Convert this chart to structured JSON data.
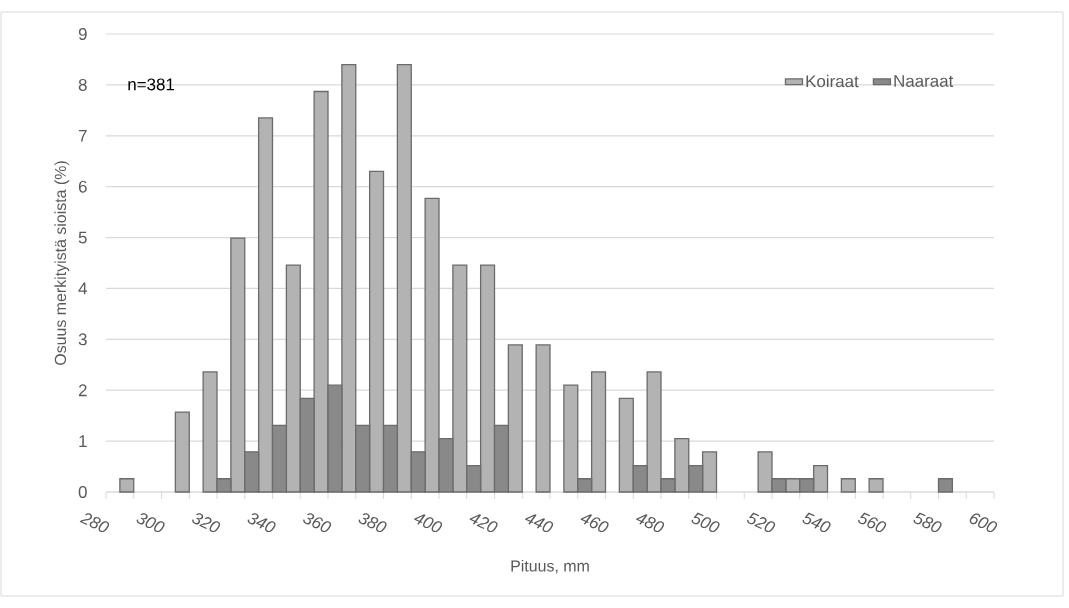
{
  "chart_data": {
    "type": "bar",
    "xlabel": "Pituus, mm",
    "ylabel": "Osuus merkityistä sioista (%)",
    "annotations": [
      "n=381"
    ],
    "x": [
      290,
      300,
      310,
      320,
      330,
      340,
      350,
      360,
      370,
      380,
      390,
      400,
      410,
      420,
      430,
      440,
      450,
      460,
      470,
      480,
      490,
      500,
      510,
      520,
      530,
      540,
      550,
      560,
      570,
      580
    ],
    "series": [
      {
        "name": "Koiraat",
        "color": "#b3b3b3",
        "values": [
          0.26,
          null,
          1.57,
          2.36,
          4.99,
          7.35,
          4.46,
          7.87,
          8.4,
          6.3,
          8.4,
          5.77,
          4.46,
          4.46,
          2.89,
          2.89,
          2.1,
          2.36,
          1.84,
          2.36,
          1.05,
          0.79,
          null,
          0.79,
          0.26,
          0.52,
          0.26,
          0.26,
          null,
          null
        ]
      },
      {
        "name": "Naaraat",
        "color": "#898989",
        "values": [
          null,
          null,
          null,
          0.26,
          0.79,
          1.31,
          1.84,
          2.1,
          1.31,
          1.31,
          0.79,
          1.05,
          0.52,
          1.31,
          null,
          null,
          0.26,
          null,
          0.52,
          0.26,
          0.52,
          null,
          null,
          0.26,
          0.26,
          null,
          null,
          null,
          null,
          0.26
        ]
      }
    ],
    "xlim": [
      280,
      600
    ],
    "xticks": [
      280,
      {
        "value": 290,
        "label": null
      },
      300,
      {
        "value": 310,
        "label": null
      },
      320,
      {
        "value": 330,
        "label": null
      },
      340,
      {
        "value": 350,
        "label": null
      },
      360,
      {
        "value": 370,
        "label": null
      },
      380,
      {
        "value": 390,
        "label": null
      },
      400,
      {
        "value": 410,
        "label": null
      },
      420,
      {
        "value": 430,
        "label": null
      },
      440,
      {
        "value": 450,
        "label": null
      },
      460,
      {
        "value": 470,
        "label": null
      },
      480,
      {
        "value": 490,
        "label": null
      },
      500,
      {
        "value": 510,
        "label": null
      },
      520,
      {
        "value": 530,
        "label": null
      },
      540,
      {
        "value": 550,
        "label": null
      },
      560,
      {
        "value": 570,
        "label": null
      },
      580,
      {
        "value": 590,
        "label": null
      },
      600
    ],
    "ylim": [
      0,
      9
    ],
    "yticks": [
      0,
      1,
      2,
      3,
      4,
      5,
      6,
      7,
      8,
      9
    ],
    "grid": "y",
    "legend": "top right"
  }
}
